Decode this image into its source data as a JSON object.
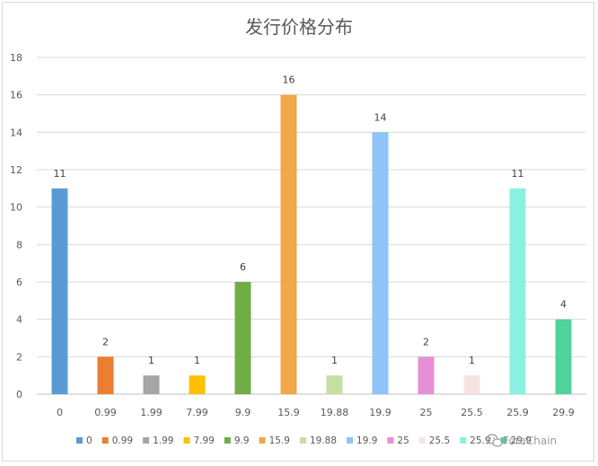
{
  "chart_data": {
    "type": "bar",
    "title": "发行价格分布",
    "xlabel": "",
    "ylabel": "",
    "ylim": [
      0,
      18
    ],
    "yticks": [
      0,
      2,
      4,
      6,
      8,
      10,
      12,
      14,
      16,
      18
    ],
    "grid": true,
    "legend_position": "bottom",
    "categories": [
      "0",
      "0.99",
      "1.99",
      "7.99",
      "9.9",
      "15.9",
      "19.88",
      "19.9",
      "25",
      "25.5",
      "25.9",
      "29.9"
    ],
    "values": [
      11,
      2,
      1,
      1,
      6,
      16,
      1,
      14,
      2,
      1,
      11,
      4
    ],
    "colors": [
      "#5b9bd5",
      "#ed7d31",
      "#a5a5a5",
      "#ffc000",
      "#70ad47",
      "#f0a848",
      "#c5dfa4",
      "#8ec4f8",
      "#e68fd8",
      "#f6e4e4",
      "#8af0e2",
      "#4fd39a"
    ]
  },
  "watermark": {
    "text": "ForeChain",
    "icon": "wechat-icon"
  }
}
